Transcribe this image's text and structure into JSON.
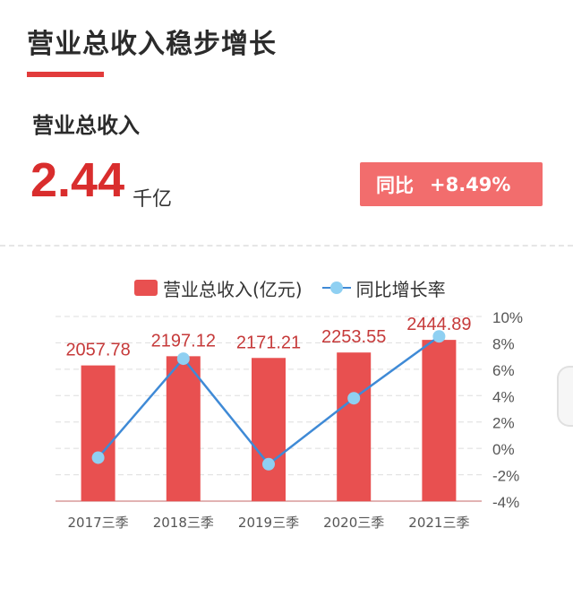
{
  "header": {
    "title": "营业总收入稳步增长"
  },
  "metric": {
    "label": "营业总收入",
    "value": "2.44",
    "unit": "千亿"
  },
  "yoy": {
    "label": "同比",
    "value": "+8.49%"
  },
  "colors": {
    "accent": "#e23b3b",
    "bar": "#e85050",
    "line": "#3f8ad6",
    "point": "#8fd0f2",
    "badge": "#f26d6d"
  },
  "chart_data": {
    "type": "bar",
    "categories": [
      "2017三季",
      "2018三季",
      "2019三季",
      "2020三季",
      "2021三季"
    ],
    "legend": [
      "营业总收入(亿元)",
      "同比增长率"
    ],
    "series": [
      {
        "name": "营业总收入(亿元)",
        "type": "bar",
        "axis": "left",
        "values": [
          2057.78,
          2197.12,
          2171.21,
          2253.55,
          2444.89
        ],
        "labels": [
          "2057.78",
          "2197.12",
          "2171.21",
          "2253.55",
          "2444.89"
        ]
      },
      {
        "name": "同比增长率",
        "type": "line",
        "axis": "right",
        "values": [
          -0.7,
          6.8,
          -1.2,
          3.8,
          8.49
        ]
      }
    ],
    "left_ylim": [
      0,
      2800
    ],
    "right_ylim": [
      -4,
      10
    ],
    "right_ticks": [
      "10%",
      "8%",
      "6%",
      "4%",
      "2%",
      "0%",
      "-2%",
      "-4%"
    ],
    "grid": true,
    "legend_position": "top"
  }
}
